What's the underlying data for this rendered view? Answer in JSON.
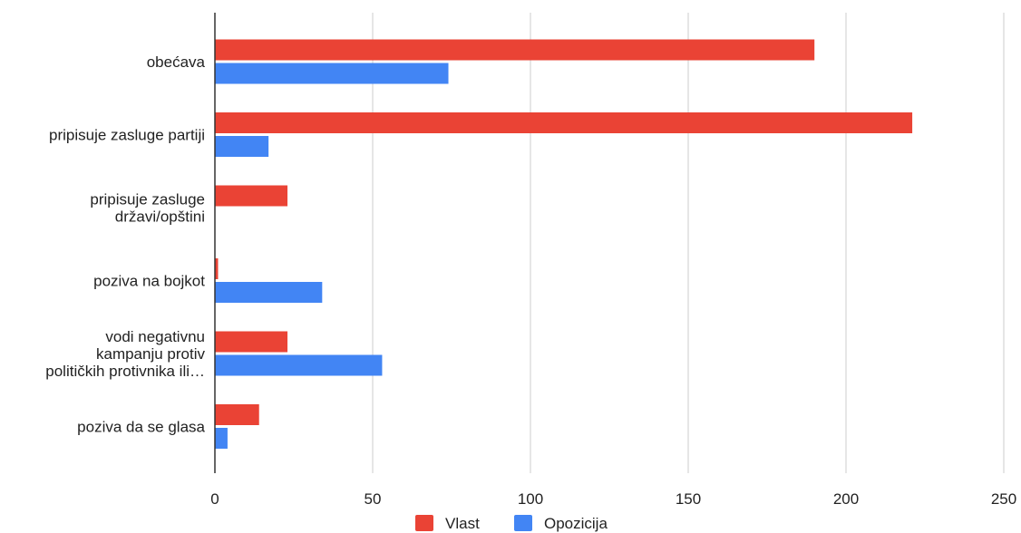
{
  "chart_data": {
    "type": "bar",
    "orientation": "horizontal",
    "categories": [
      [
        "obećava"
      ],
      [
        "pripisuje zasluge partiji"
      ],
      [
        "pripisuje zasluge",
        "državi/opštini"
      ],
      [
        "poziva na bojkot"
      ],
      [
        "vodi negativnu",
        "kampanju protiv",
        "političkih protivnika ili…"
      ],
      [
        "poziva da se glasa"
      ]
    ],
    "series": [
      {
        "name": "Vlast",
        "color": "#ea4335",
        "values": [
          190,
          221,
          23,
          1,
          23,
          14
        ]
      },
      {
        "name": "Opozicija",
        "color": "#4285f4",
        "values": [
          74,
          17,
          0,
          34,
          53,
          4
        ]
      }
    ],
    "xlim": [
      0,
      250
    ],
    "xticks": [
      "0",
      "50",
      "100",
      "150",
      "200",
      "250"
    ],
    "grid": true,
    "legend_position": "bottom"
  }
}
